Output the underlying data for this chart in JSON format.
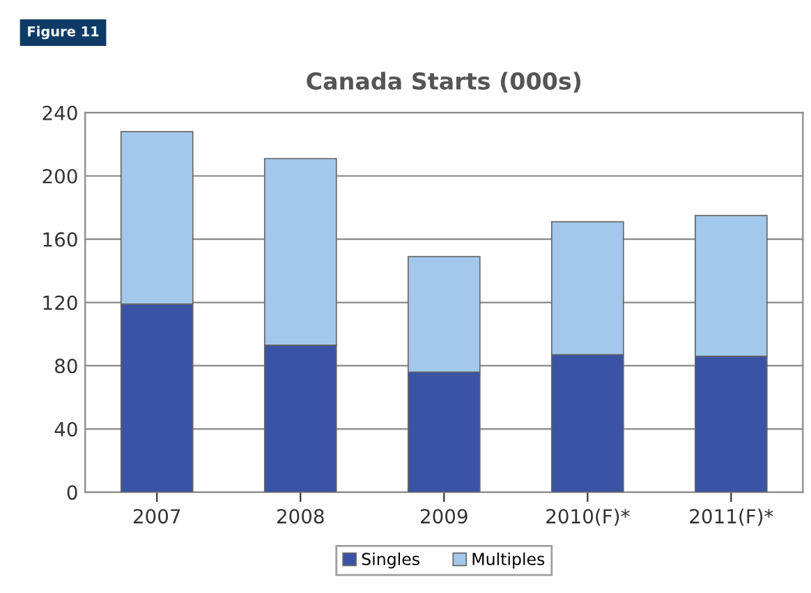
{
  "chart_data": {
    "type": "bar",
    "title": "Canada Starts (000s)",
    "annotations": [
      "Figure 11"
    ],
    "categories": [
      "2007",
      "2008",
      "2009",
      "2010(F)*",
      "2011(F)*"
    ],
    "stacked": true,
    "series": [
      {
        "name": "Singles",
        "color": "#3a53a4",
        "values": [
          119,
          93,
          76,
          87,
          86
        ]
      },
      {
        "name": "Multiples",
        "color": "#a3c8eb",
        "values": [
          109,
          118,
          73,
          84,
          89
        ]
      }
    ],
    "ylim": [
      0,
      240
    ],
    "yticks": [
      0,
      40,
      80,
      120,
      160,
      200,
      240
    ],
    "grid": "y",
    "legend": "bottom"
  }
}
